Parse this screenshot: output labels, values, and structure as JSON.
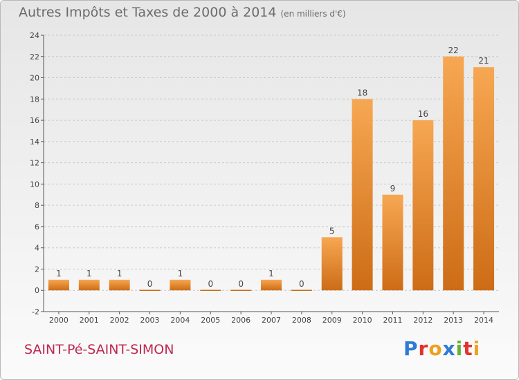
{
  "header": {
    "title": "Autres Impôts et Taxes de 2000 à 2014",
    "subtitle": "(en milliers d'€)"
  },
  "footer": {
    "commune": "SAINT-Pé-SAINT-SIMON",
    "brand_letters": [
      {
        "ch": "P",
        "color": "#2e7bd6"
      },
      {
        "ch": "r",
        "color": "#e0322f"
      },
      {
        "ch": "o",
        "color": "#f0a020"
      },
      {
        "ch": "x",
        "color": "#2e7bd6"
      },
      {
        "ch": "i",
        "color": "#62b33a"
      },
      {
        "ch": "t",
        "color": "#e0322f"
      },
      {
        "ch": "i",
        "color": "#f0a020"
      }
    ]
  },
  "colors": {
    "bar_light": "#f7a752",
    "bar_dark": "#cd6c16",
    "axis": "#555555",
    "grid": "#c8c8c8",
    "text": "#444444"
  },
  "chart_data": {
    "type": "bar",
    "categories": [
      "2000",
      "2001",
      "2002",
      "2003",
      "2004",
      "2005",
      "2006",
      "2007",
      "2008",
      "2009",
      "2010",
      "2011",
      "2012",
      "2013",
      "2014"
    ],
    "values": [
      1,
      1,
      1,
      0,
      1,
      0,
      0,
      1,
      0,
      5,
      18,
      9,
      16,
      22,
      21
    ],
    "title": "Autres Impôts et Taxes de 2000 à 2014",
    "subtitle": "(en milliers d'€)",
    "xlabel": "",
    "ylabel": "",
    "ylim": [
      -2,
      24
    ],
    "yticks": [
      -2,
      0,
      2,
      4,
      6,
      8,
      10,
      12,
      14,
      16,
      18,
      20,
      22,
      24
    ],
    "grid": "dashed-horizontal",
    "legend": "none"
  }
}
